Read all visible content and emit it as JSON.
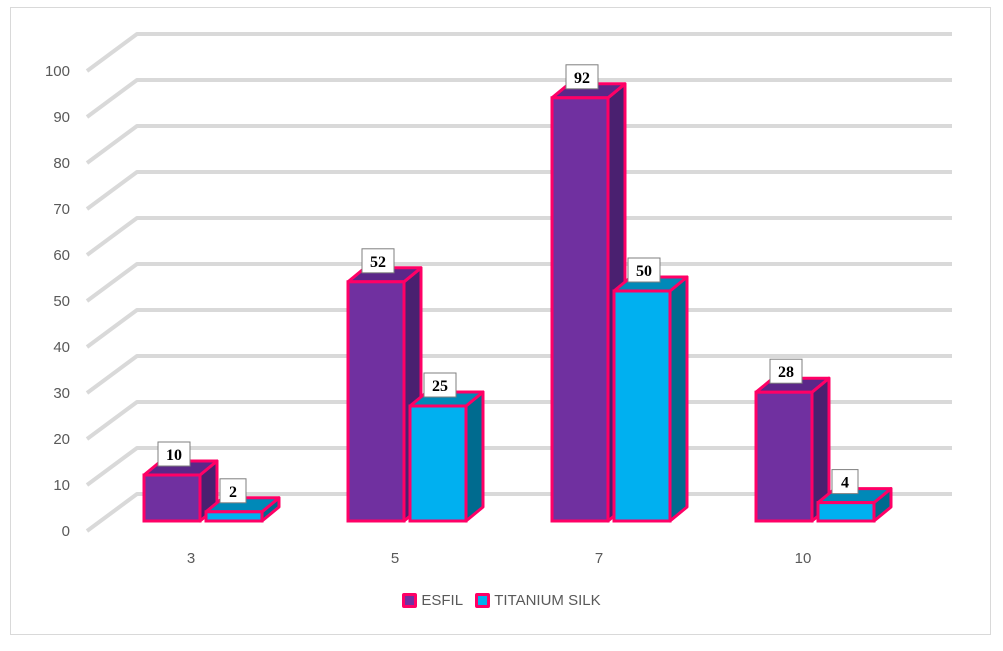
{
  "chart_data": {
    "type": "bar",
    "title": "",
    "xlabel": "",
    "ylabel": "",
    "categories": [
      "3",
      "5",
      "7",
      "10"
    ],
    "series": [
      {
        "name": "ESFIL",
        "values": [
          10,
          52,
          92,
          28
        ],
        "color": "#7030a0",
        "side_color": "#4a2070",
        "top_color": "#5b2789"
      },
      {
        "name": "TITANIUM SILK",
        "values": [
          2,
          25,
          50,
          4
        ],
        "color": "#00b0f0",
        "side_color": "#006b8f",
        "top_color": "#0089b8"
      }
    ],
    "ylim": [
      0,
      100
    ],
    "yticks": [
      "0",
      "10",
      "20",
      "30",
      "40",
      "50",
      "60",
      "70",
      "80",
      "90",
      "100"
    ],
    "grid": true,
    "bar_outline_color": "#ff0066",
    "grid_color": "#d9d9d9",
    "data_labels": true,
    "legend_position": "bottom",
    "style": "3d-clustered-column"
  }
}
